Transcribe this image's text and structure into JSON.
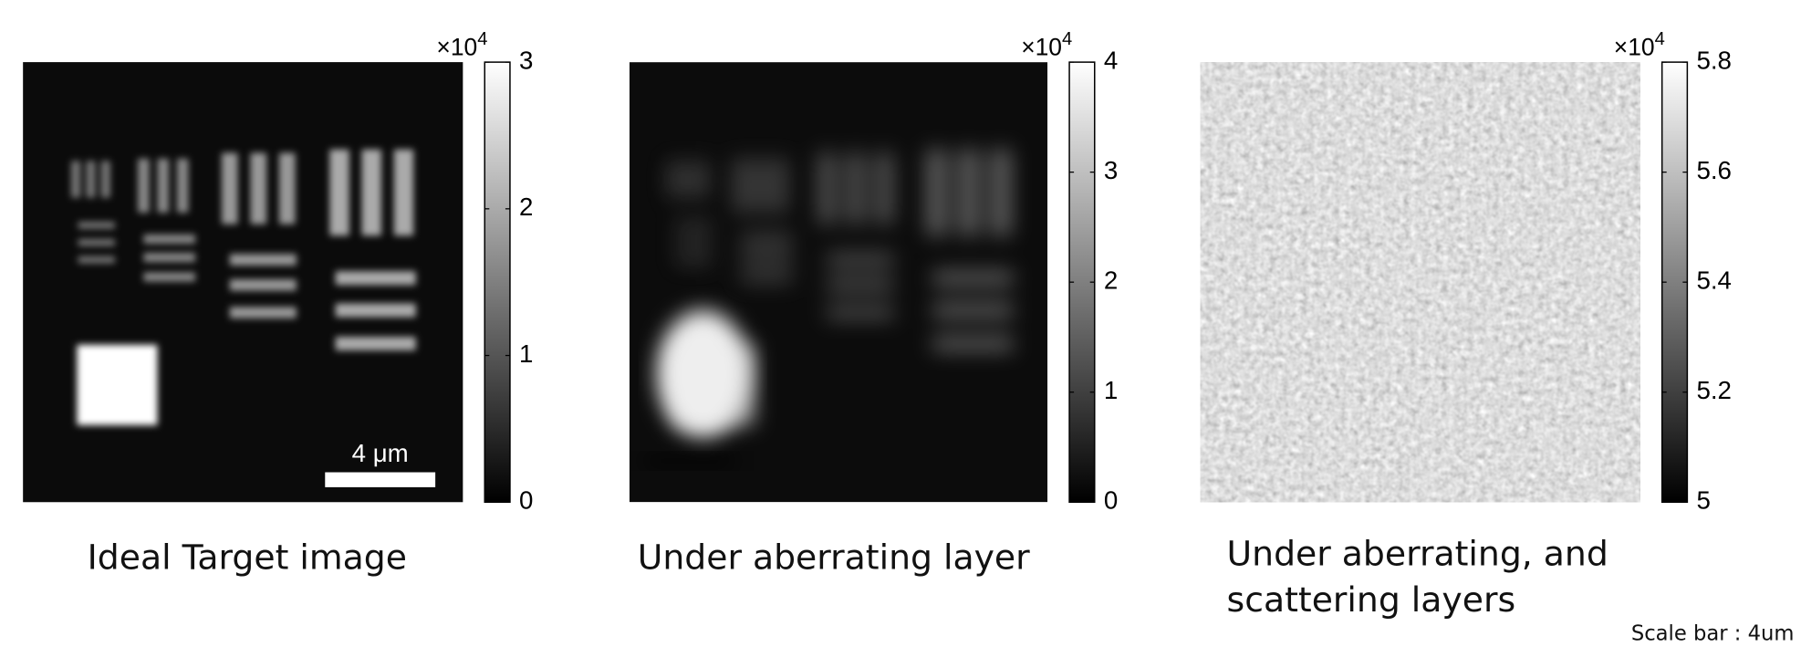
{
  "chart_data": [
    {
      "type": "image",
      "caption": [
        "Ideal Target image"
      ],
      "scale_bar_label": "4 μm",
      "multiplier": "×10",
      "multiplier_exponent": "4",
      "clim": [
        0,
        3
      ],
      "cticks": [
        0,
        1,
        2,
        3
      ]
    },
    {
      "type": "image",
      "caption": [
        "Under aberrating layer"
      ],
      "multiplier": "×10",
      "multiplier_exponent": "4",
      "clim": [
        0,
        4
      ],
      "cticks": [
        0,
        1,
        2,
        3,
        4
      ]
    },
    {
      "type": "image",
      "caption": [
        "Under aberrating, and",
        "scattering layers"
      ],
      "multiplier": "×10",
      "multiplier_exponent": "4",
      "clim": [
        5,
        5.8
      ],
      "cticks": [
        5,
        5.2,
        5.4,
        5.6,
        5.8
      ]
    }
  ],
  "footnote": "Scale bar : 4um"
}
